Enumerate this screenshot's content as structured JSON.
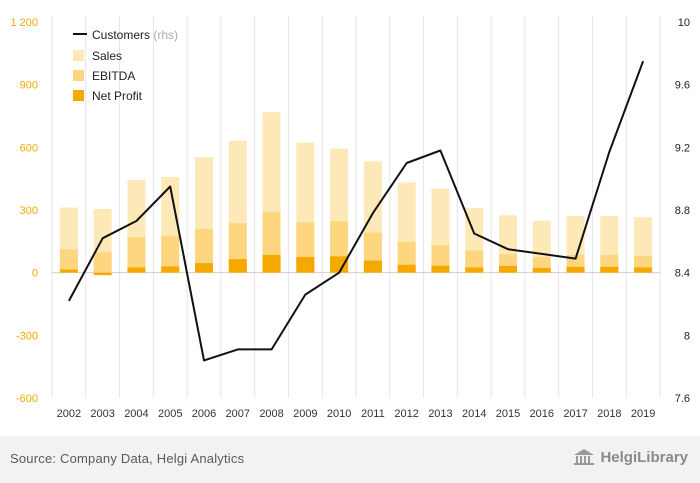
{
  "chart_data": {
    "type": "bar",
    "categories": [
      "2002",
      "2003",
      "2004",
      "2005",
      "2006",
      "2007",
      "2008",
      "2009",
      "2010",
      "2011",
      "2012",
      "2013",
      "2014",
      "2015",
      "2016",
      "2017",
      "2018",
      "2019"
    ],
    "left_axis": {
      "range": [
        -600,
        1200
      ],
      "ticks": [
        -600,
        -300,
        0,
        300,
        600,
        900,
        1200
      ],
      "tick_labels": [
        "-600",
        "-300",
        "0",
        "300",
        "600",
        "900",
        "1 200"
      ],
      "color": "#f5a800"
    },
    "right_axis": {
      "range": [
        7.6,
        10
      ],
      "ticks": [
        7.6,
        8,
        8.4,
        8.8,
        9.2,
        9.6,
        10
      ],
      "tick_labels": [
        "7.6",
        "8",
        "8.4",
        "8.8",
        "9.2",
        "9.6",
        "10"
      ],
      "color": "#222222"
    },
    "grid": "vertical",
    "legend_position": "top-left",
    "series": [
      {
        "name": "Sales",
        "type": "bar",
        "color": "#fde9b7",
        "values": [
          312,
          305,
          443,
          458,
          553,
          632,
          768,
          623,
          594,
          532,
          432,
          403,
          310,
          275,
          248,
          272,
          272,
          265
        ]
      },
      {
        "name": "EBITDA",
        "type": "bar",
        "color": "#fed67f",
        "values": [
          112,
          98,
          170,
          175,
          210,
          237,
          290,
          240,
          247,
          192,
          148,
          132,
          106,
          88,
          75,
          85,
          85,
          80
        ]
      },
      {
        "name": "Net Profit",
        "type": "bar",
        "color": "#f5a800",
        "values": [
          15,
          -12,
          25,
          30,
          45,
          65,
          85,
          75,
          78,
          58,
          38,
          33,
          25,
          32,
          22,
          28,
          28,
          25
        ]
      },
      {
        "name": "Customers",
        "axis": "right",
        "type": "line",
        "color": "#111111",
        "values": [
          8.22,
          8.62,
          8.73,
          8.95,
          7.84,
          7.91,
          7.91,
          8.26,
          8.4,
          8.78,
          9.1,
          9.18,
          8.65,
          8.55,
          8.52,
          8.49,
          9.17,
          9.75
        ]
      }
    ]
  },
  "legend": {
    "customers_label": "Customers",
    "customers_suffix": "(rhs)",
    "sales_label": "Sales",
    "ebitda_label": "EBITDA",
    "net_profit_label": "Net Profit"
  },
  "footer": {
    "source": "Source: Company Data, Helgi Analytics",
    "brand": "HelgiLibrary"
  }
}
